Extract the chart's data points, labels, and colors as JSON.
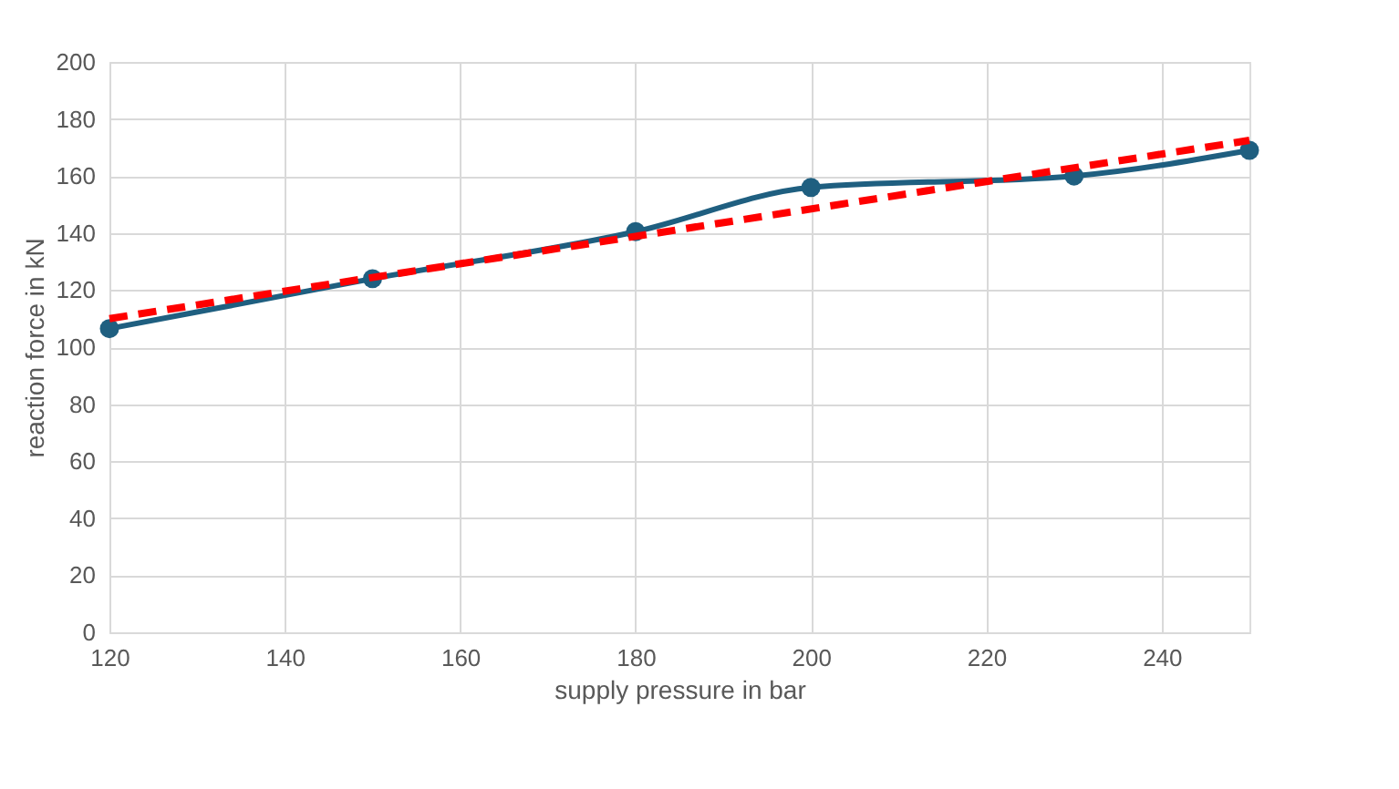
{
  "chart_data": {
    "type": "line",
    "xlabel": "supply pressure in bar",
    "ylabel": "reaction force in kN",
    "xlim": [
      120,
      250
    ],
    "xticks": [
      120,
      140,
      160,
      180,
      200,
      220,
      240
    ],
    "ylim": [
      0,
      200
    ],
    "yticks": [
      0,
      20,
      40,
      60,
      80,
      100,
      120,
      140,
      160,
      180,
      200
    ],
    "grid": true,
    "legend": false,
    "series": [
      {
        "type": "line",
        "color": "#1f5f80",
        "marker": "circle",
        "line_style": "solid",
        "x": [
          120,
          150,
          180,
          200,
          230,
          250
        ],
        "values": [
          106.5,
          124,
          140.5,
          156,
          160,
          169
        ]
      },
      {
        "type": "line",
        "color": "#ff0000",
        "marker": "none",
        "line_style": "dashed",
        "x": [
          120,
          250
        ],
        "values": [
          110,
          172.5
        ]
      }
    ]
  }
}
